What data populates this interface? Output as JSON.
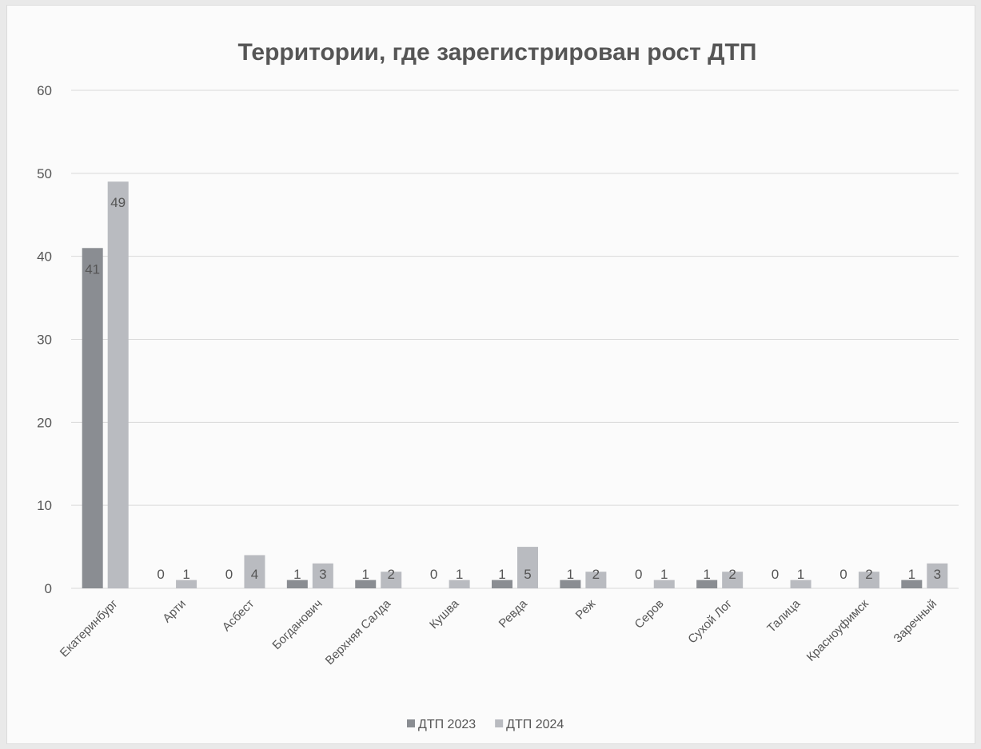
{
  "chart_data": {
    "type": "bar",
    "title": "Территории, где зарегистрирован рост ДТП",
    "xlabel": "",
    "ylabel": "",
    "ylim": [
      0,
      60
    ],
    "yticks": [
      0,
      10,
      20,
      30,
      40,
      50,
      60
    ],
    "grid": true,
    "legend_position": "bottom",
    "categories": [
      "Екатеринбург",
      "Арти",
      "Асбест",
      "Богданович",
      "Верхняя Салда",
      "Кушва",
      "Ревда",
      "Реж",
      "Серов",
      "Сухой Лог",
      "Талица",
      "Красноуфимск",
      "Заречный"
    ],
    "series": [
      {
        "name": "ДТП 2023",
        "color": "#8a8d92",
        "values": [
          41,
          0,
          0,
          1,
          1,
          0,
          1,
          1,
          0,
          1,
          0,
          0,
          1
        ]
      },
      {
        "name": "ДТП 2024",
        "color": "#b9bbc0",
        "values": [
          49,
          1,
          4,
          3,
          2,
          1,
          5,
          2,
          1,
          2,
          1,
          2,
          3
        ]
      }
    ]
  }
}
